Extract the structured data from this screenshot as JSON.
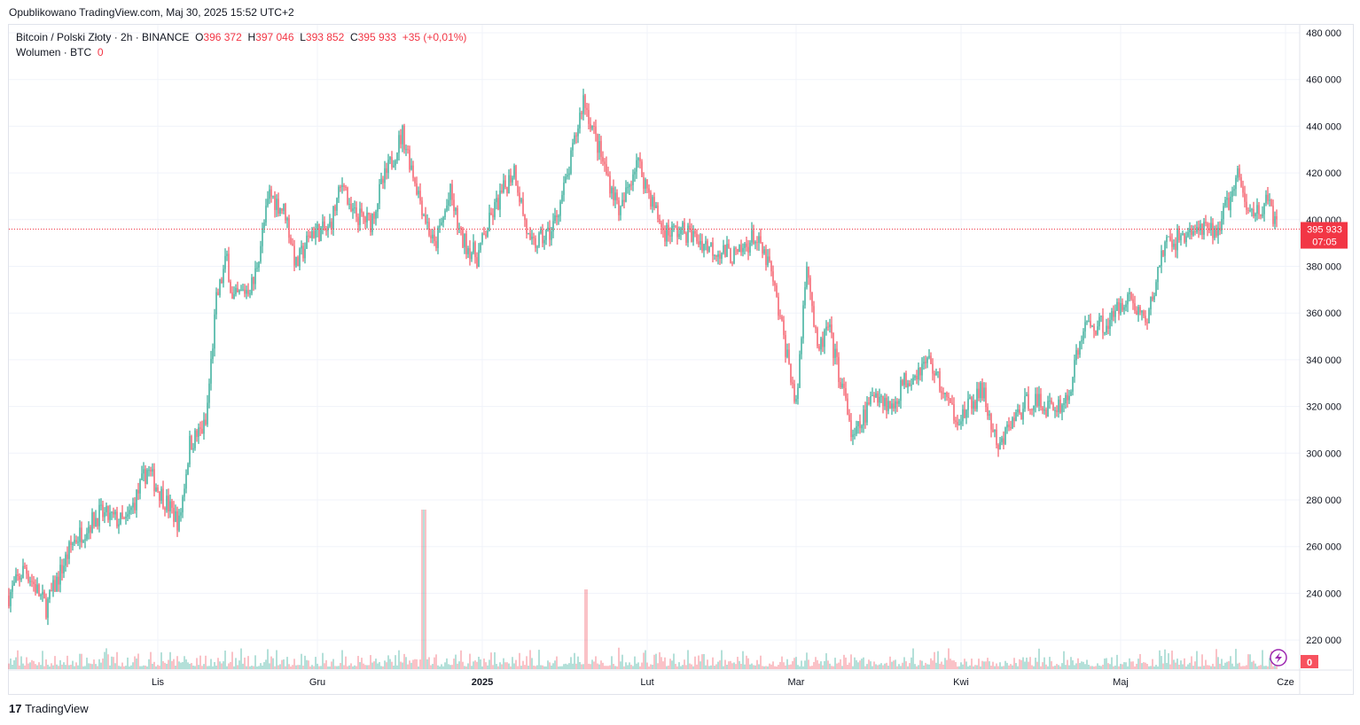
{
  "header": {
    "published": "Opublikowano TradingView.com, Maj 30, 2025 15:52 UTC+2"
  },
  "legend": {
    "symbol": "Bitcoin / Polski Złoty · 2h · BINANCE",
    "o_label": "O",
    "o": "396 372",
    "h_label": "H",
    "h": "397 046",
    "l_label": "L",
    "l": "393 852",
    "c_label": "C",
    "c": "395 933",
    "change": "+35 (+0,01%)",
    "volume_label": "Wolumen · BTC",
    "volume": "0"
  },
  "last_price": {
    "price": "395 933",
    "countdown": "07:05",
    "volume_badge": "0"
  },
  "brand": "TradingView",
  "colors": {
    "up": "#089981",
    "down": "#f23645",
    "badge": "#f23645"
  },
  "chart_data": {
    "type": "candlestick",
    "title": "Bitcoin / Polski Złoty · 2h · BINANCE",
    "ylim": [
      210000,
      485000
    ],
    "yticks": [
      480000,
      460000,
      440000,
      420000,
      400000,
      380000,
      360000,
      340000,
      320000,
      300000,
      280000,
      260000,
      240000,
      220000
    ],
    "ytick_labels": [
      "480 000",
      "460 000",
      "440 000",
      "420 000",
      "400 000",
      "380 000",
      "360 000",
      "340 000",
      "320 000",
      "300 000",
      "280 000",
      "260 000",
      "240 000",
      "220 000"
    ],
    "xticks": [
      {
        "label": "Lis",
        "day": 0
      },
      {
        "label": "Gru",
        "day": 30
      },
      {
        "label": "2025",
        "day": 61
      },
      {
        "label": "Lut",
        "day": 92
      },
      {
        "label": "Mar",
        "day": 120
      },
      {
        "label": "Kwi",
        "day": 151
      },
      {
        "label": "Maj",
        "day": 181
      },
      {
        "label": "Cze",
        "day": 212
      }
    ],
    "xlim_days": [
      -28,
      214
    ],
    "x_unit": "days since 1 Nov 2024",
    "price_path": [
      [
        -28,
        239000
      ],
      [
        -25,
        251000
      ],
      [
        -21,
        234000
      ],
      [
        -16,
        262000
      ],
      [
        -11,
        274000
      ],
      [
        -6,
        270000
      ],
      [
        -2,
        293000
      ],
      [
        1,
        281000
      ],
      [
        4,
        270000
      ],
      [
        6,
        304000
      ],
      [
        9,
        312000
      ],
      [
        11,
        365000
      ],
      [
        13,
        384000
      ],
      [
        14,
        365000
      ],
      [
        18,
        373000
      ],
      [
        21,
        411000
      ],
      [
        24,
        403000
      ],
      [
        26,
        380000
      ],
      [
        29,
        395000
      ],
      [
        32,
        395000
      ],
      [
        35,
        418000
      ],
      [
        36,
        403000
      ],
      [
        40,
        399000
      ],
      [
        42,
        414000
      ],
      [
        46,
        437000
      ],
      [
        50,
        403000
      ],
      [
        52,
        388000
      ],
      [
        55,
        411000
      ],
      [
        57,
        392000
      ],
      [
        60,
        384000
      ],
      [
        63,
        403000
      ],
      [
        67,
        422000
      ],
      [
        70,
        388000
      ],
      [
        74,
        395000
      ],
      [
        77,
        418000
      ],
      [
        80,
        452000
      ],
      [
        84,
        422000
      ],
      [
        87,
        403000
      ],
      [
        90,
        426000
      ],
      [
        95,
        395000
      ],
      [
        99,
        395000
      ],
      [
        104,
        388000
      ],
      [
        109,
        384000
      ],
      [
        112,
        393000
      ],
      [
        115,
        380000
      ],
      [
        119,
        334000
      ],
      [
        120,
        319000
      ],
      [
        122,
        384000
      ],
      [
        124,
        342000
      ],
      [
        126,
        354000
      ],
      [
        130,
        315000
      ],
      [
        130.5,
        304000
      ],
      [
        135,
        327000
      ],
      [
        138,
        319000
      ],
      [
        140,
        330000
      ],
      [
        145,
        340000
      ],
      [
        149,
        319000
      ],
      [
        151,
        315000
      ],
      [
        155,
        327000
      ],
      [
        158,
        300000
      ],
      [
        160,
        312000
      ],
      [
        164,
        323000
      ],
      [
        168,
        319000
      ],
      [
        171,
        323000
      ],
      [
        174,
        354000
      ],
      [
        179,
        356000
      ],
      [
        182,
        368000
      ],
      [
        186,
        356000
      ],
      [
        189,
        388000
      ],
      [
        194,
        395000
      ],
      [
        199,
        395000
      ],
      [
        203,
        418000
      ],
      [
        205,
        403000
      ],
      [
        209,
        407000
      ],
      [
        210.5,
        395933
      ]
    ],
    "last_price": 395933
  }
}
